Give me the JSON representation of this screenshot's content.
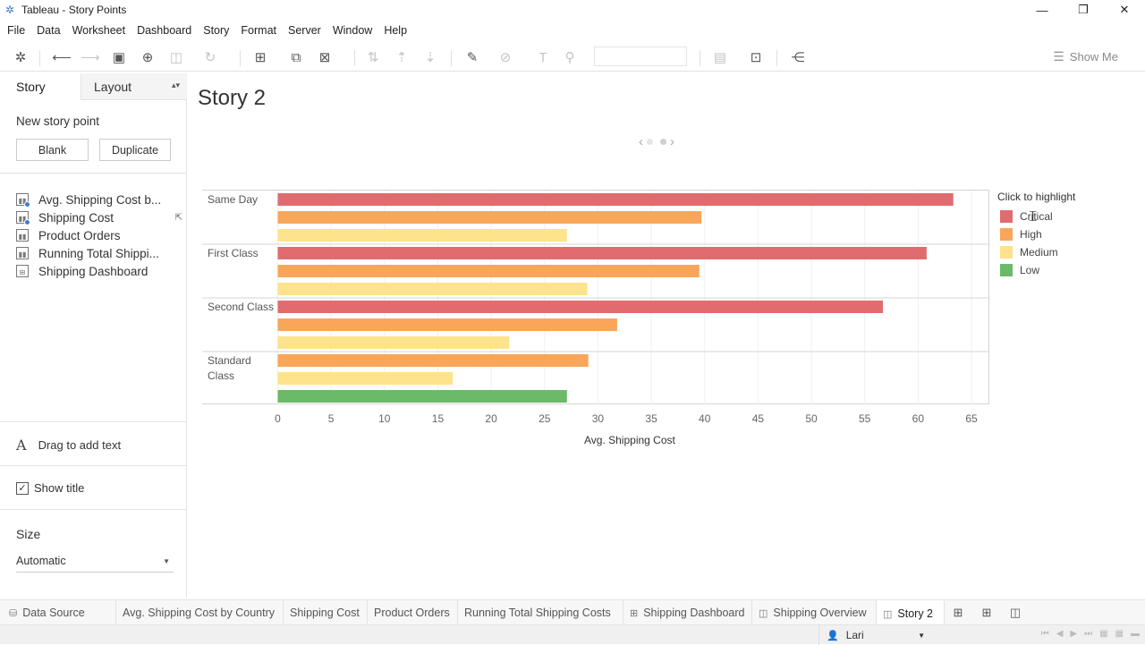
{
  "window": {
    "title": "Tableau - Story Points",
    "minimize": "—",
    "restore": "❐",
    "close": "✕"
  },
  "menu": [
    "File",
    "Data",
    "Worksheet",
    "Dashboard",
    "Story",
    "Format",
    "Server",
    "Window",
    "Help"
  ],
  "toolbar": {
    "show_me": "Show Me"
  },
  "sidebar": {
    "tab_story": "Story",
    "tab_layout": "Layout",
    "new_story_point": "New story point",
    "blank": "Blank",
    "duplicate": "Duplicate",
    "sheets": [
      {
        "label": "Avg. Shipping Cost b...",
        "icon": "bar-chart-icon"
      },
      {
        "label": "Shipping Cost",
        "icon": "bar-chart-icon"
      },
      {
        "label": "Product Orders",
        "icon": "bar-chart-icon"
      },
      {
        "label": "Running Total Shippi...",
        "icon": "bar-chart-icon"
      },
      {
        "label": "Shipping Dashboard",
        "icon": "dashboard-icon"
      }
    ],
    "drag_text": "Drag to add text",
    "show_title": "Show title",
    "show_title_checked": true,
    "size_label": "Size",
    "size_value": "Automatic"
  },
  "story": {
    "title": "Story 2"
  },
  "chart_data": {
    "type": "bar",
    "orientation": "horizontal",
    "categories": [
      "Same Day",
      "First Class",
      "Second Class",
      "Standard Class"
    ],
    "category_lines": [
      [
        "Same Day"
      ],
      [
        "First Class"
      ],
      [
        "Second Class"
      ],
      [
        "Standard",
        "Class"
      ]
    ],
    "series": [
      {
        "name": "Critical",
        "color": "#e06c6f",
        "values": [
          63.3,
          60.8,
          56.7,
          null
        ]
      },
      {
        "name": "High",
        "color": "#f9a65a",
        "values": [
          39.7,
          39.5,
          31.8,
          29.1
        ]
      },
      {
        "name": "Medium",
        "color": "#fde38b",
        "values": [
          27.1,
          29.0,
          21.7,
          16.4
        ]
      },
      {
        "name": "Low",
        "color": "#6aba6a",
        "values": [
          null,
          null,
          null,
          27.1
        ]
      }
    ],
    "xlabel": "Avg. Shipping Cost",
    "xticks": [
      0,
      5,
      10,
      15,
      20,
      25,
      30,
      35,
      40,
      45,
      50,
      55,
      60,
      65
    ],
    "xlim": [
      0,
      66
    ],
    "legend_title": "Click to highlight",
    "legend_position": "right",
    "grid": true
  },
  "bottom_tabs": [
    {
      "label": "Data Source",
      "kind": "datasource"
    },
    {
      "label": "Avg. Shipping Cost by Country",
      "kind": "sheet"
    },
    {
      "label": "Shipping Cost",
      "kind": "sheet"
    },
    {
      "label": "Product Orders",
      "kind": "sheet"
    },
    {
      "label": "Running Total Shipping Costs",
      "kind": "sheet"
    },
    {
      "label": "Shipping Dashboard",
      "kind": "dashboard"
    },
    {
      "label": "Shipping Overview",
      "kind": "story"
    },
    {
      "label": "Story 2",
      "kind": "story",
      "active": true
    }
  ],
  "status": {
    "user": "Lari"
  }
}
